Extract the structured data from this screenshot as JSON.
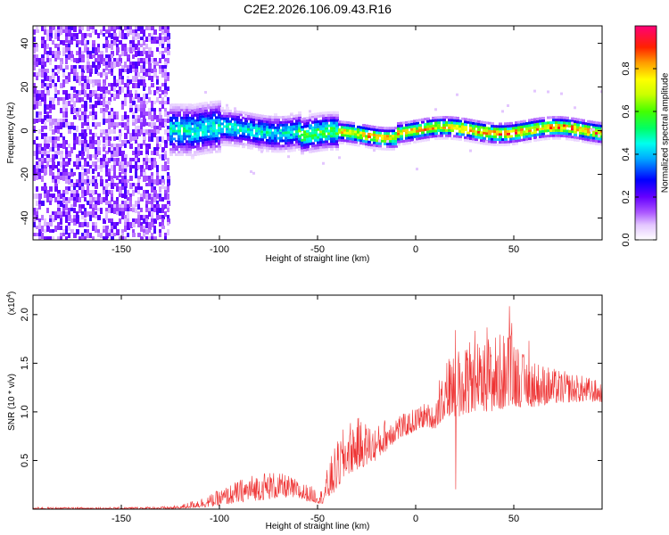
{
  "title": "C2E2.2026.106.09.43.R16",
  "chart_data": [
    {
      "type": "heatmap",
      "xlabel": "Height of straight line (km)",
      "ylabel": "Frequency (Hz)",
      "xlim": [
        -195,
        95
      ],
      "ylim": [
        -50,
        48
      ],
      "xticks": [
        -150,
        -100,
        -50,
        0,
        50
      ],
      "xtick_labels": [
        "-150",
        "-100",
        "-50",
        "0",
        "50"
      ],
      "yticks": [
        -40,
        -20,
        0,
        20,
        40
      ],
      "ytick_labels": [
        "-40",
        "-20",
        "0",
        "20",
        "40"
      ],
      "colorbar": {
        "label": "Normalized spectral amplitude",
        "range": [
          0,
          1
        ],
        "ticks": [
          0.0,
          0.2,
          0.4,
          0.6,
          0.8
        ],
        "tick_labels": [
          "0.0",
          "0.2",
          "0.4",
          "0.6",
          "0.8"
        ]
      }
    },
    {
      "type": "line",
      "xlabel": "Height of straight line (km)",
      "ylabel": "SNR (10 * v/v)",
      "y_multiplier": "(x10",
      "y_multiplier_exp": "4",
      "y_multiplier_close": ")",
      "color": "#ee3333",
      "xlim": [
        -195,
        95
      ],
      "ylim": [
        0,
        2.2
      ],
      "xticks": [
        -150,
        -100,
        -50,
        0,
        50
      ],
      "xtick_labels": [
        "-150",
        "-100",
        "-50",
        "0",
        "50"
      ],
      "yticks": [
        0.5,
        1.0,
        1.5,
        2.0
      ],
      "ytick_labels": [
        "0.5",
        "1.0",
        "1.5",
        "2.0"
      ],
      "envelope": {
        "x": [
          -195,
          -150,
          -125,
          -120,
          -115,
          -105,
          -95,
          -85,
          -75,
          -65,
          -55,
          -48,
          -44,
          -40,
          -35,
          -30,
          -25,
          -20,
          -15,
          -10,
          -5,
          0,
          5,
          10,
          13,
          18,
          25,
          30,
          40,
          50,
          55,
          60,
          70,
          80,
          90,
          95
        ],
        "lower": [
          0.0,
          0.0,
          0.0,
          0.0,
          0.01,
          0.02,
          0.05,
          0.08,
          0.1,
          0.12,
          0.08,
          0.05,
          0.1,
          0.2,
          0.35,
          0.4,
          0.45,
          0.5,
          0.6,
          0.7,
          0.75,
          0.8,
          0.85,
          0.82,
          0.9,
          0.95,
          0.95,
          1.0,
          1.0,
          1.05,
          1.05,
          1.05,
          1.08,
          1.1,
          1.1,
          1.1
        ],
        "upper": [
          0.02,
          0.02,
          0.03,
          0.04,
          0.08,
          0.15,
          0.25,
          0.35,
          0.4,
          0.35,
          0.25,
          0.2,
          0.5,
          0.7,
          0.9,
          0.95,
          0.9,
          0.85,
          0.95,
          1.0,
          0.98,
          1.05,
          1.1,
          1.05,
          1.55,
          1.6,
          1.7,
          1.75,
          1.8,
          1.85,
          1.6,
          1.55,
          1.45,
          1.4,
          1.35,
          1.3
        ]
      }
    }
  ]
}
